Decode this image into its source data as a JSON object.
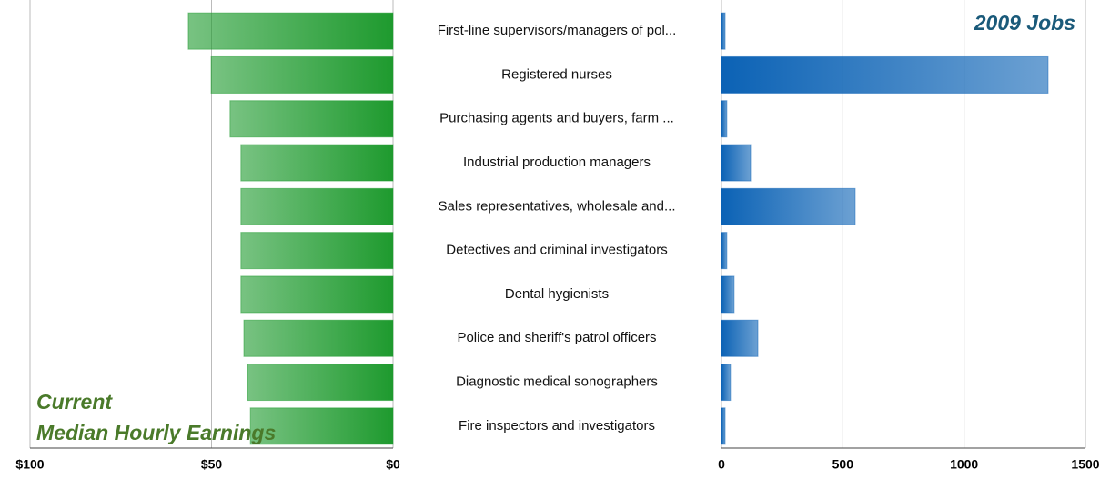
{
  "chart_data": [
    {
      "type": "bar",
      "orientation": "horizontal",
      "title": [
        "Current",
        "Median Hourly Earnings"
      ],
      "categories": [
        "First-line supervisors/managers of pol...",
        "Registered nurses",
        "Purchasing agents and buyers, farm ...",
        "Industrial production managers",
        "Sales representatives, wholesale and...",
        "Detectives and criminal investigators",
        "Dental hygienists",
        "Police and sheriff's patrol officers",
        "Diagnostic medical sonographers",
        "Fire inspectors and investigators"
      ],
      "values": [
        56.4,
        50.1,
        44.9,
        41.9,
        41.9,
        41.9,
        41.9,
        41.1,
        40.1,
        39.3
      ],
      "color": "#1e9a2e",
      "xlim": [
        100,
        0
      ],
      "xticks": [
        {
          "value": 100,
          "label": "$100"
        },
        {
          "value": 50,
          "label": "$50"
        },
        {
          "value": 0,
          "label": "$0"
        }
      ],
      "grid": true
    },
    {
      "type": "bar",
      "orientation": "horizontal",
      "title": "2009 Jobs",
      "values": [
        15,
        1346,
        22,
        120,
        551,
        22,
        52,
        150,
        37,
        15
      ],
      "color": "#0b62b5",
      "xlim": [
        0,
        1500
      ],
      "xticks": [
        0,
        500,
        1000,
        1500
      ],
      "grid": true
    }
  ]
}
